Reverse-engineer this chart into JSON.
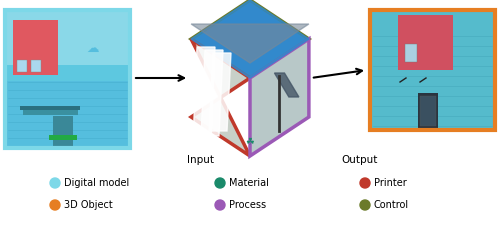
{
  "legend_items": [
    {
      "label": "Digital model",
      "color": "#7DD8E8"
    },
    {
      "label": "Material",
      "color": "#1A8A6A"
    },
    {
      "label": "Printer",
      "color": "#C0392B"
    },
    {
      "label": "3D Object",
      "color": "#E67E22"
    },
    {
      "label": "Process",
      "color": "#9B59B6"
    },
    {
      "label": "Control",
      "color": "#6B7A2A"
    }
  ],
  "left_box_border_color": "#7DD8E8",
  "right_box_border_color": "#E67E22",
  "input_label": "Input",
  "output_label": "Output",
  "hex_border_top": "#6B7A2A",
  "hex_border_left": "#C0392B",
  "hex_border_right": "#9B59B6",
  "background_color": "#ffffff"
}
